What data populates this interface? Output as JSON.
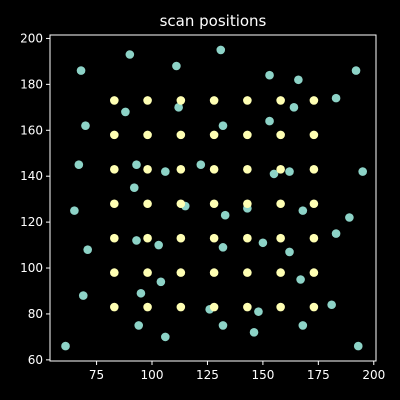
{
  "chart_data": {
    "type": "scatter",
    "title": "scan positions",
    "xlabel": "",
    "ylabel": "",
    "xlim": [
      54,
      201
    ],
    "ylim": [
      59.5,
      201.5
    ],
    "x_ticks": [
      75,
      100,
      125,
      150,
      175,
      200
    ],
    "y_ticks": [
      60,
      80,
      100,
      120,
      140,
      160,
      180,
      200
    ],
    "grid": false,
    "background": "#000000",
    "axis_color": "#ffffff",
    "series": [
      {
        "color": "#8dd3c7",
        "points": [
          [
            68,
            186
          ],
          [
            90,
            193
          ],
          [
            111,
            188
          ],
          [
            131,
            195
          ],
          [
            153,
            184
          ],
          [
            166,
            182
          ],
          [
            192,
            186
          ],
          [
            70,
            162
          ],
          [
            88,
            168
          ],
          [
            112,
            170
          ],
          [
            132,
            162
          ],
          [
            153,
            164
          ],
          [
            164,
            170
          ],
          [
            183,
            174
          ],
          [
            67,
            145
          ],
          [
            93,
            145
          ],
          [
            106,
            142
          ],
          [
            122,
            145
          ],
          [
            155,
            141
          ],
          [
            162,
            142
          ],
          [
            195,
            142
          ],
          [
            65,
            125
          ],
          [
            92,
            135
          ],
          [
            115,
            127
          ],
          [
            133,
            123
          ],
          [
            143,
            126
          ],
          [
            168,
            125
          ],
          [
            189,
            122
          ],
          [
            71,
            108
          ],
          [
            93,
            112
          ],
          [
            103,
            110
          ],
          [
            132,
            109
          ],
          [
            150,
            111
          ],
          [
            162,
            107
          ],
          [
            183,
            115
          ],
          [
            69,
            88
          ],
          [
            95,
            89
          ],
          [
            104,
            94
          ],
          [
            126,
            82
          ],
          [
            148,
            81
          ],
          [
            167,
            95
          ],
          [
            181,
            84
          ],
          [
            61,
            66
          ],
          [
            94,
            75
          ],
          [
            106,
            70
          ],
          [
            132,
            75
          ],
          [
            146,
            72
          ],
          [
            168,
            75
          ],
          [
            193,
            66
          ]
        ]
      },
      {
        "color": "#ffffb3",
        "points": [
          [
            83,
            173
          ],
          [
            98,
            173
          ],
          [
            113,
            173
          ],
          [
            128,
            173
          ],
          [
            143,
            173
          ],
          [
            158,
            173
          ],
          [
            173,
            173
          ],
          [
            83,
            158
          ],
          [
            98,
            158
          ],
          [
            113,
            158
          ],
          [
            128,
            158
          ],
          [
            143,
            158
          ],
          [
            158,
            158
          ],
          [
            173,
            158
          ],
          [
            83,
            143
          ],
          [
            98,
            143
          ],
          [
            113,
            143
          ],
          [
            128,
            143
          ],
          [
            143,
            143
          ],
          [
            158,
            143
          ],
          [
            173,
            143
          ],
          [
            83,
            128
          ],
          [
            98,
            128
          ],
          [
            113,
            128
          ],
          [
            128,
            128
          ],
          [
            143,
            128
          ],
          [
            158,
            128
          ],
          [
            173,
            128
          ],
          [
            83,
            113
          ],
          [
            98,
            113
          ],
          [
            113,
            113
          ],
          [
            128,
            113
          ],
          [
            143,
            113
          ],
          [
            158,
            113
          ],
          [
            173,
            113
          ],
          [
            83,
            98
          ],
          [
            98,
            98
          ],
          [
            113,
            98
          ],
          [
            128,
            98
          ],
          [
            143,
            98
          ],
          [
            158,
            98
          ],
          [
            173,
            98
          ],
          [
            83,
            83
          ],
          [
            98,
            83
          ],
          [
            113,
            83
          ],
          [
            128,
            83
          ],
          [
            143,
            83
          ],
          [
            158,
            83
          ],
          [
            173,
            83
          ]
        ]
      }
    ]
  }
}
